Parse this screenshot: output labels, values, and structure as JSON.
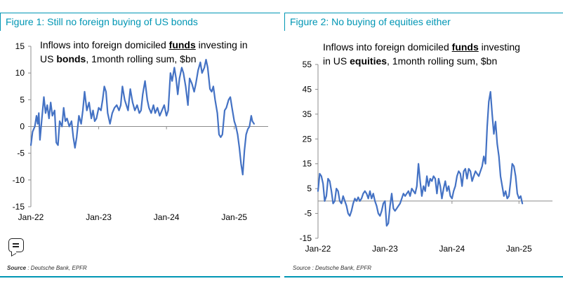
{
  "figures": [
    {
      "title": "Figure 1: Still no foreign buying of US bonds",
      "annotation": {
        "line1_pre": "Inflows into foreign domiciled ",
        "line1_bold": "funds",
        "line1_post": " investing in",
        "line2_pre": "US ",
        "line2_bold": "bonds",
        "line2_post": ", 1month rolling sum, $bn"
      },
      "source_label": "Source",
      "source_text": " : Deutsche Bank, EPFR"
    },
    {
      "title": "Figure 2: No buying of equities either",
      "annotation": {
        "line1_pre": "Inflows into foreign domiciled ",
        "line1_bold": "funds",
        "line1_post": " investing",
        "line2_pre": "in US ",
        "line2_bold": "equities",
        "line2_post": ", 1month rolling sum, $bn"
      },
      "source_label": "",
      "source_text": "Source : Deutsche Bank, EPFR"
    }
  ],
  "feedback_icon": "chat-feedback-icon",
  "colors": {
    "accent": "#0096b4",
    "line": "#4472c4"
  },
  "chart_data": [
    {
      "type": "line",
      "title": "Figure 1: Still no foreign buying of US bonds",
      "ylabel": "Inflows into foreign domiciled funds investing in US bonds, 1month rolling sum, $bn",
      "ylim": [
        -15,
        15
      ],
      "yticks": [
        15,
        10,
        5,
        0,
        -5,
        -10,
        -15
      ],
      "xlim": [
        0,
        42
      ],
      "xticks": [
        {
          "label": "Jan-22",
          "x": 0
        },
        {
          "label": "Jan-23",
          "x": 12
        },
        {
          "label": "Jan-24",
          "x": 24
        },
        {
          "label": "Jan-25",
          "x": 36
        }
      ],
      "grid": false,
      "series": [
        {
          "values": [
            [
              0,
              -3.5
            ],
            [
              0.3,
              -1
            ],
            [
              0.7,
              0
            ],
            [
              1,
              2
            ],
            [
              1.2,
              0.5
            ],
            [
              1.4,
              2.5
            ],
            [
              1.6,
              -2.5
            ],
            [
              1.9,
              1
            ],
            [
              2.3,
              5.5
            ],
            [
              2.6,
              2.5
            ],
            [
              2.9,
              4
            ],
            [
              3.2,
              1.5
            ],
            [
              3.5,
              4.5
            ],
            [
              3.8,
              2
            ],
            [
              4.2,
              3
            ],
            [
              4.5,
              -3
            ],
            [
              4.8,
              -3.5
            ],
            [
              5.1,
              1
            ],
            [
              5.5,
              0
            ],
            [
              5.8,
              3.5
            ],
            [
              6.1,
              1
            ],
            [
              6.4,
              1.5
            ],
            [
              6.8,
              0
            ],
            [
              7.2,
              1
            ],
            [
              7.5,
              -2
            ],
            [
              7.8,
              -4
            ],
            [
              8.1,
              -2
            ],
            [
              8.5,
              2
            ],
            [
              8.9,
              0.5
            ],
            [
              9.2,
              3
            ],
            [
              9.5,
              6.5
            ],
            [
              9.9,
              3
            ],
            [
              10.3,
              4.5
            ],
            [
              10.7,
              1.5
            ],
            [
              11,
              3
            ],
            [
              11.3,
              1
            ],
            [
              11.6,
              1.5
            ],
            [
              12,
              3.5
            ],
            [
              12.4,
              3
            ],
            [
              12.7,
              5
            ],
            [
              13,
              7.5
            ],
            [
              13.3,
              6.5
            ],
            [
              13.6,
              2.5
            ],
            [
              14,
              0.5
            ],
            [
              14.4,
              2.5
            ],
            [
              14.8,
              3.5
            ],
            [
              15.2,
              4
            ],
            [
              15.6,
              3
            ],
            [
              15.9,
              4
            ],
            [
              16.2,
              7.5
            ],
            [
              16.6,
              5
            ],
            [
              16.9,
              4
            ],
            [
              17.2,
              3
            ],
            [
              17.6,
              7
            ],
            [
              18,
              4.5
            ],
            [
              18.4,
              3
            ],
            [
              18.8,
              4
            ],
            [
              19.2,
              2.5
            ],
            [
              19.5,
              3
            ],
            [
              19.8,
              6
            ],
            [
              20.2,
              8.5
            ],
            [
              20.6,
              5
            ],
            [
              20.9,
              3.5
            ],
            [
              21.3,
              2.5
            ],
            [
              21.7,
              4
            ],
            [
              22,
              2.5
            ],
            [
              22.4,
              3.5
            ],
            [
              22.8,
              2
            ],
            [
              23.2,
              3
            ],
            [
              23.6,
              4
            ],
            [
              24,
              2
            ],
            [
              24.3,
              3
            ],
            [
              24.7,
              10
            ],
            [
              25,
              8.5
            ],
            [
              25.4,
              11
            ],
            [
              25.7,
              9
            ],
            [
              26,
              6
            ],
            [
              26.3,
              9
            ],
            [
              26.7,
              11
            ],
            [
              27,
              10
            ],
            [
              27.4,
              7.5
            ],
            [
              27.8,
              4
            ],
            [
              28.1,
              9
            ],
            [
              28.5,
              8
            ],
            [
              28.9,
              6.5
            ],
            [
              29.2,
              8
            ],
            [
              29.6,
              10.5
            ],
            [
              30,
              12
            ],
            [
              30.3,
              10
            ],
            [
              30.7,
              11
            ],
            [
              31,
              12.5
            ],
            [
              31.3,
              11
            ],
            [
              31.7,
              7
            ],
            [
              32,
              6.5
            ],
            [
              32.3,
              7.5
            ],
            [
              32.6,
              5
            ],
            [
              33,
              2.5
            ],
            [
              33.3,
              -1.5
            ],
            [
              33.6,
              -2
            ],
            [
              33.9,
              -1.5
            ],
            [
              34.3,
              3
            ],
            [
              34.6,
              3.5
            ],
            [
              35,
              5
            ],
            [
              35.3,
              5.5
            ],
            [
              35.6,
              3.5
            ],
            [
              36,
              1
            ],
            [
              36.3,
              0
            ],
            [
              36.6,
              -1.5
            ],
            [
              36.9,
              -4
            ],
            [
              37.2,
              -7
            ],
            [
              37.5,
              -9
            ],
            [
              37.8,
              -4.5
            ],
            [
              38.1,
              -1.5
            ],
            [
              38.4,
              -0.5
            ],
            [
              38.7,
              0
            ],
            [
              39,
              2
            ],
            [
              39.2,
              1
            ],
            [
              39.5,
              0.5
            ]
          ]
        }
      ]
    },
    {
      "type": "line",
      "title": "Figure 2: No buying of equities either",
      "ylabel": "Inflows into foreign domiciled funds investing in US equities, 1month rolling sum, $bn",
      "ylim": [
        -15,
        55
      ],
      "yticks": [
        55,
        45,
        35,
        25,
        15,
        5,
        -5,
        -15
      ],
      "xlim": [
        0,
        42
      ],
      "xticks": [
        {
          "label": "Jan-22",
          "x": 0
        },
        {
          "label": "Jan-23",
          "x": 12
        },
        {
          "label": "Jan-24",
          "x": 24
        },
        {
          "label": "Jan-25",
          "x": 36
        }
      ],
      "grid": false,
      "series": [
        {
          "values": [
            [
              0,
              4
            ],
            [
              0.3,
              11
            ],
            [
              0.6,
              10
            ],
            [
              0.9,
              7
            ],
            [
              1.2,
              0
            ],
            [
              1.5,
              2
            ],
            [
              1.8,
              9
            ],
            [
              2.1,
              8
            ],
            [
              2.4,
              4
            ],
            [
              2.7,
              -1
            ],
            [
              3.0,
              0
            ],
            [
              3.3,
              5
            ],
            [
              3.6,
              4
            ],
            [
              3.9,
              0
            ],
            [
              4.2,
              -1
            ],
            [
              4.5,
              2
            ],
            [
              4.8,
              0
            ],
            [
              5.1,
              -2
            ],
            [
              5.4,
              -5
            ],
            [
              5.7,
              -6
            ],
            [
              6.0,
              -4
            ],
            [
              6.3,
              -1
            ],
            [
              6.6,
              1
            ],
            [
              6.9,
              0
            ],
            [
              7.2,
              1.5
            ],
            [
              7.5,
              0
            ],
            [
              7.8,
              1
            ],
            [
              8.1,
              3
            ],
            [
              8.4,
              4
            ],
            [
              8.7,
              3
            ],
            [
              9.0,
              1
            ],
            [
              9.3,
              4
            ],
            [
              9.6,
              1
            ],
            [
              9.9,
              3
            ],
            [
              10.2,
              0
            ],
            [
              10.5,
              -2
            ],
            [
              10.8,
              -5
            ],
            [
              11.1,
              -6
            ],
            [
              11.4,
              -4
            ],
            [
              11.7,
              -1
            ],
            [
              12.0,
              0
            ],
            [
              12.3,
              -10
            ],
            [
              12.6,
              -9
            ],
            [
              12.9,
              -2
            ],
            [
              13.2,
              3
            ],
            [
              13.5,
              -3
            ],
            [
              13.8,
              -4
            ],
            [
              14.1,
              -3
            ],
            [
              14.4,
              -2
            ],
            [
              14.7,
              -1
            ],
            [
              15.0,
              1
            ],
            [
              15.3,
              3
            ],
            [
              15.6,
              2
            ],
            [
              15.9,
              3
            ],
            [
              16.2,
              4
            ],
            [
              16.5,
              2
            ],
            [
              16.8,
              5
            ],
            [
              17.1,
              4
            ],
            [
              17.4,
              3
            ],
            [
              17.7,
              6
            ],
            [
              18.0,
              15
            ],
            [
              18.3,
              8
            ],
            [
              18.6,
              2
            ],
            [
              18.9,
              6
            ],
            [
              19.2,
              4
            ],
            [
              19.5,
              10
            ],
            [
              19.8,
              6
            ],
            [
              20.1,
              9
            ],
            [
              20.4,
              8
            ],
            [
              20.7,
              10
            ],
            [
              21.0,
              9
            ],
            [
              21.3,
              3
            ],
            [
              21.6,
              9
            ],
            [
              21.9,
              6
            ],
            [
              22.2,
              1
            ],
            [
              22.5,
              5
            ],
            [
              22.8,
              8
            ],
            [
              23.1,
              4
            ],
            [
              23.4,
              6
            ],
            [
              23.7,
              2
            ],
            [
              24.0,
              1
            ],
            [
              24.3,
              4
            ],
            [
              24.6,
              6
            ],
            [
              24.9,
              10
            ],
            [
              25.2,
              12
            ],
            [
              25.5,
              11
            ],
            [
              25.8,
              6
            ],
            [
              26.1,
              12
            ],
            [
              26.4,
              13
            ],
            [
              26.7,
              9
            ],
            [
              27.0,
              13
            ],
            [
              27.3,
              12
            ],
            [
              27.6,
              8
            ],
            [
              27.9,
              10
            ],
            [
              28.2,
              12
            ],
            [
              28.5,
              11
            ],
            [
              28.8,
              10
            ],
            [
              29.1,
              12
            ],
            [
              29.4,
              14
            ],
            [
              29.7,
              18
            ],
            [
              30.0,
              15
            ],
            [
              30.3,
              30
            ],
            [
              30.6,
              40
            ],
            [
              30.9,
              44
            ],
            [
              31.2,
              35
            ],
            [
              31.5,
              27
            ],
            [
              31.8,
              32
            ],
            [
              32.1,
              23
            ],
            [
              32.4,
              18
            ],
            [
              32.7,
              10
            ],
            [
              33.0,
              6
            ],
            [
              33.3,
              2
            ],
            [
              33.6,
              4
            ],
            [
              33.9,
              1
            ],
            [
              34.2,
              2
            ],
            [
              34.5,
              8
            ],
            [
              34.8,
              15
            ],
            [
              35.1,
              14
            ],
            [
              35.4,
              10
            ],
            [
              35.7,
              3
            ],
            [
              36.0,
              1
            ],
            [
              36.3,
              2
            ],
            [
              36.6,
              -1
            ]
          ]
        }
      ]
    }
  ]
}
